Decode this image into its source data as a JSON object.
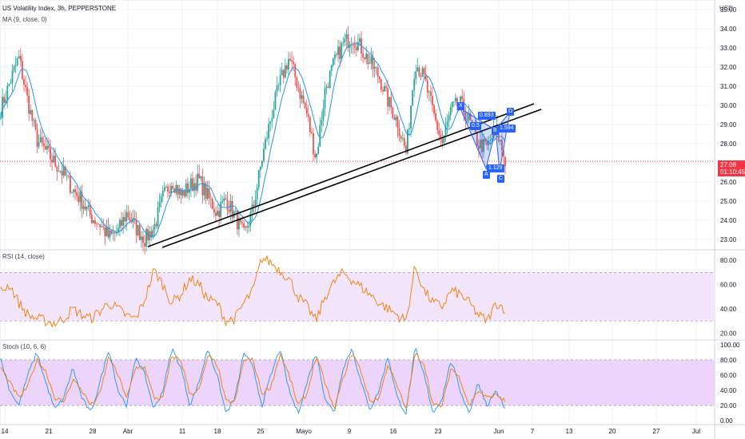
{
  "header": {
    "symbol": "US Volatility Index, 3h, PEPPERSTONE",
    "ma": "MA (9, close, 0)"
  },
  "price_axis": {
    "currency": "USD",
    "last_price": "27.08",
    "countdown": "01:10:45"
  },
  "rsi_panel": {
    "label": "RSI (14, close)"
  },
  "stoch_panel": {
    "label": "Stoch (10, 6, 6)"
  },
  "pattern": {
    "points": [
      "X",
      "A",
      "B",
      "C",
      "D"
    ],
    "ratios": [
      "0.893",
      "1.594",
      "1.129"
    ],
    "ratio_partial": "0.5"
  },
  "colors": {
    "up": "#26a69a",
    "down": "#ef5350",
    "ma": "#2196f3",
    "rsi": "#f57c00",
    "stoch_k": "#2196f3",
    "stoch_d": "#f57c00",
    "band_rsi": "#f3e5fb",
    "band_stoch": "#ecd4fb",
    "pattern": "#2962ff"
  },
  "chart_data": [
    {
      "type": "candlestick",
      "title": "US Volatility Index, 3h, PEPPERSTONE",
      "ylabel": "USD",
      "x_ticks": [
        "14",
        "21",
        "28",
        "Abr",
        "11",
        "18",
        "25",
        "Mayo",
        "9",
        "16",
        "23",
        "Jun",
        "7",
        "13",
        "20",
        "27",
        "Jul"
      ],
      "y_ticks": [
        "35.00",
        "34.00",
        "33.00",
        "32.00",
        "31.00",
        "30.00",
        "29.00",
        "28.00",
        "27.00",
        "26.00",
        "25.00",
        "24.00",
        "23.00"
      ],
      "ylim": [
        22.5,
        35.5
      ],
      "anchors_close": [
        29.8,
        31.2,
        32.5,
        30.2,
        28.2,
        27.6,
        27.0,
        26.4,
        25.6,
        25.0,
        24.2,
        23.8,
        23.1,
        23.4,
        24.4,
        23.6,
        23.0,
        23.6,
        25.2,
        26.1,
        25.3,
        25.8,
        26.1,
        25.2,
        24.4,
        25.1,
        24.2,
        23.2,
        24.6,
        27.2,
        29.4,
        31.2,
        32.5,
        31.0,
        29.5,
        27.2,
        30.8,
        32.2,
        33.2,
        33.6,
        33.0,
        32.2,
        31.5,
        30.2,
        29.2,
        27.5,
        32.3,
        31.4,
        29.6,
        28.0,
        29.8,
        30.1,
        29.2,
        28.0,
        27.8,
        28.8,
        27.1
      ],
      "series": [
        {
          "name": "MA (9, close, 0)"
        }
      ]
    },
    {
      "type": "line",
      "title": "RSI (14, close)",
      "y_ticks": [
        "80.00",
        "60.00",
        "40.00",
        "20.00"
      ],
      "ylim": [
        15,
        88
      ],
      "band": [
        30,
        70
      ],
      "anchors": [
        55,
        60,
        45,
        35,
        32,
        30,
        28,
        32,
        40,
        35,
        32,
        38,
        45,
        40,
        34,
        32,
        48,
        72,
        60,
        45,
        52,
        65,
        60,
        48,
        45,
        30,
        32,
        45,
        55,
        82,
        78,
        72,
        65,
        50,
        42,
        30,
        50,
        62,
        70,
        64,
        58,
        52,
        45,
        40,
        35,
        30,
        75,
        55,
        45,
        42,
        55,
        52,
        45,
        35,
        30,
        45,
        40
      ]
    },
    {
      "type": "line",
      "title": "Stoch (10, 6, 6)",
      "y_ticks": [
        "100.00",
        "80.00",
        "60.00",
        "40.00",
        "20.00",
        "0.00"
      ],
      "ylim": [
        -5,
        105
      ],
      "band": [
        20,
        80
      ],
      "series": [
        {
          "name": "%K",
          "anchors": [
            80,
            40,
            20,
            60,
            90,
            50,
            15,
            30,
            70,
            30,
            10,
            50,
            95,
            40,
            20,
            85,
            60,
            15,
            40,
            95,
            70,
            20,
            50,
            95,
            60,
            10,
            30,
            90,
            70,
            20,
            60,
            95,
            40,
            10,
            50,
            90,
            30,
            10,
            70,
            95,
            50,
            15,
            40,
            85,
            30,
            10,
            95,
            60,
            10,
            30,
            80,
            40,
            10,
            50,
            20,
            40,
            15
          ]
        },
        {
          "name": "%D",
          "anchors": [
            70,
            50,
            30,
            45,
            80,
            65,
            30,
            25,
            55,
            40,
            20,
            35,
            85,
            60,
            30,
            70,
            70,
            30,
            30,
            85,
            80,
            35,
            40,
            85,
            75,
            25,
            25,
            80,
            80,
            35,
            45,
            88,
            60,
            20,
            35,
            85,
            50,
            15,
            55,
            90,
            65,
            25,
            30,
            75,
            45,
            15,
            88,
            75,
            20,
            20,
            70,
            55,
            20,
            40,
            30,
            35,
            25
          ]
        }
      ]
    }
  ]
}
